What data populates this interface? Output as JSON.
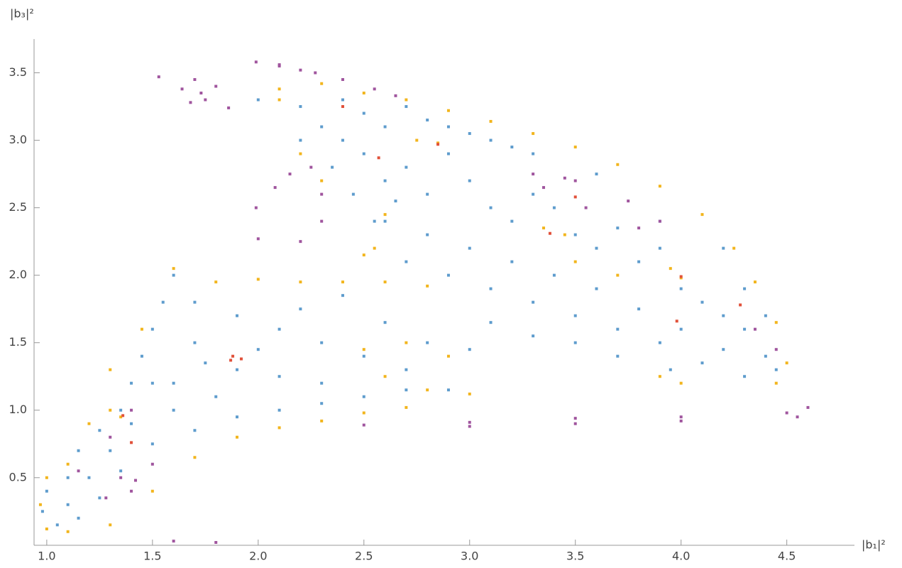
{
  "chart_data": {
    "type": "scatter",
    "x_label": "|b₁|²",
    "y_label": "|b₃|²",
    "xlim": [
      0.94,
      4.82
    ],
    "ylim": [
      0.02,
      3.75
    ],
    "xticks": [
      {
        "value": 1,
        "label": "1.0"
      },
      1.5,
      {
        "value": 2,
        "label": "2.0"
      },
      2.5,
      {
        "value": 3,
        "label": "3.0"
      },
      3.5,
      {
        "value": 4,
        "label": "4.0"
      },
      4.5
    ],
    "yticks": [
      0.5,
      {
        "value": 1,
        "label": "1.0"
      },
      1.5,
      {
        "value": 2,
        "label": "2.0"
      },
      2.5,
      {
        "value": 3,
        "label": "3.0"
      },
      3.5
    ],
    "series": [
      {
        "color": "#5e9ccd",
        "x": [
          2.0,
          2.2,
          2.3,
          2.4,
          2.5,
          2.6,
          2.7,
          2.8,
          2.9,
          3.0,
          3.1,
          3.2,
          2.5,
          2.6,
          2.7,
          2.8,
          2.9,
          3.0,
          3.1,
          3.2,
          3.3,
          3.4,
          3.5,
          3.6,
          3.7,
          3.8,
          3.9,
          4.0,
          4.1,
          4.2,
          4.3,
          4.4,
          4.45,
          4.2,
          4.0,
          3.8,
          3.6,
          3.4,
          3.2,
          3.0,
          2.8,
          2.6,
          2.7,
          2.9,
          3.1,
          3.3,
          3.5,
          3.7,
          3.9,
          4.1,
          4.3,
          3.95,
          3.7,
          3.5,
          3.3,
          3.1,
          4.2,
          4.3,
          4.4,
          3.9,
          3.6,
          3.3,
          2.35,
          2.45,
          2.55,
          2.65,
          2.4,
          2.2,
          1.6,
          1.55,
          1.5,
          1.45,
          1.4,
          1.35,
          1.25,
          1.15,
          1.1,
          1.0,
          0.98,
          1.05,
          1.15,
          1.25,
          1.35,
          1.5,
          1.7,
          1.9,
          2.1,
          2.3,
          2.5,
          2.7,
          2.9,
          1.7,
          1.9,
          2.1,
          2.3,
          2.5,
          2.7,
          1.7,
          1.9,
          2.1,
          2.3,
          1.6,
          1.8,
          1.6,
          1.5,
          1.75,
          2.0,
          2.2,
          2.4,
          2.6,
          2.8,
          3.0,
          1.4,
          1.3,
          1.2,
          1.1
        ],
        "values": [
          3.3,
          3.25,
          3.1,
          3.3,
          3.2,
          3.1,
          3.25,
          3.15,
          3.1,
          3.05,
          3.0,
          2.95,
          2.9,
          2.7,
          2.8,
          2.6,
          2.9,
          2.7,
          2.5,
          2.4,
          2.6,
          2.5,
          2.3,
          2.2,
          2.35,
          2.1,
          2.2,
          1.9,
          1.8,
          1.7,
          1.6,
          1.4,
          1.3,
          1.45,
          1.6,
          1.75,
          1.9,
          2.0,
          2.1,
          2.2,
          2.3,
          2.4,
          2.1,
          2.0,
          1.9,
          1.8,
          1.7,
          1.6,
          1.5,
          1.35,
          1.25,
          1.3,
          1.4,
          1.5,
          1.55,
          1.65,
          2.2,
          1.9,
          1.7,
          2.4,
          2.75,
          2.9,
          2.8,
          2.6,
          2.4,
          2.55,
          3.0,
          3.0,
          2.0,
          1.8,
          1.6,
          1.4,
          1.2,
          1.0,
          0.85,
          0.7,
          0.5,
          0.4,
          0.25,
          0.15,
          0.2,
          0.35,
          0.55,
          0.75,
          0.85,
          0.95,
          1.0,
          1.05,
          1.1,
          1.15,
          1.15,
          1.8,
          1.7,
          1.6,
          1.5,
          1.4,
          1.3,
          1.5,
          1.3,
          1.25,
          1.2,
          1.2,
          1.1,
          1.0,
          1.2,
          1.35,
          1.45,
          1.75,
          1.85,
          1.65,
          1.5,
          1.45,
          0.9,
          0.7,
          0.5,
          0.3
        ]
      },
      {
        "color": "#f2b51d",
        "x": [
          2.1,
          2.3,
          2.5,
          2.7,
          2.9,
          3.1,
          3.3,
          3.5,
          3.7,
          3.9,
          4.1,
          4.25,
          4.35,
          4.45,
          4.5,
          4.45,
          2.85,
          2.75,
          3.35,
          3.45,
          3.95,
          4.0,
          2.6,
          2.55,
          2.5,
          2.2,
          2.3,
          2.1,
          1.6,
          1.8,
          2.0,
          2.2,
          2.4,
          2.6,
          2.8,
          2.5,
          2.7,
          2.9,
          2.6,
          2.8,
          3.0,
          1.3,
          1.35,
          1.3,
          1.45,
          1.2,
          1.1,
          1.0,
          0.97,
          1.0,
          1.1,
          1.3,
          1.5,
          1.7,
          1.9,
          2.1,
          2.3,
          2.5,
          2.7,
          3.9,
          4.0,
          3.7,
          3.5
        ],
        "values": [
          3.38,
          3.42,
          3.35,
          3.3,
          3.22,
          3.14,
          3.05,
          2.95,
          2.82,
          2.66,
          2.45,
          2.2,
          1.95,
          1.65,
          1.35,
          1.2,
          2.98,
          3.0,
          2.35,
          2.3,
          2.05,
          1.98,
          2.45,
          2.2,
          2.15,
          2.9,
          2.7,
          3.3,
          2.05,
          1.95,
          1.97,
          1.95,
          1.95,
          1.95,
          1.92,
          1.45,
          1.5,
          1.4,
          1.25,
          1.15,
          1.12,
          1.0,
          0.95,
          1.3,
          1.6,
          0.9,
          0.6,
          0.5,
          0.3,
          0.12,
          0.1,
          0.15,
          0.4,
          0.65,
          0.8,
          0.87,
          0.92,
          0.98,
          1.02,
          1.25,
          1.2,
          2.0,
          2.1
        ]
      },
      {
        "color": "#a0559e",
        "x": [
          1.53,
          1.7,
          1.8,
          1.73,
          1.68,
          1.86,
          1.75,
          1.64,
          1.99,
          2.1,
          2.2,
          2.1,
          2.27,
          2.4,
          2.55,
          2.65,
          2.15,
          2.25,
          2.3,
          2.3,
          2.2,
          2.0,
          1.99,
          2.08,
          3.3,
          3.5,
          3.75,
          3.9,
          3.8,
          3.55,
          3.35,
          3.45,
          2.5,
          3.0,
          3.5,
          4.0,
          4.5,
          4.6,
          4.55,
          4.0,
          3.5,
          3.0,
          1.15,
          1.3,
          1.4,
          1.4,
          1.5,
          1.35,
          1.28,
          1.42,
          1.6,
          1.8,
          4.35,
          4.45
        ],
        "values": [
          3.47,
          3.45,
          3.4,
          3.35,
          3.28,
          3.24,
          3.3,
          3.38,
          3.58,
          3.56,
          3.52,
          3.55,
          3.5,
          3.45,
          3.38,
          3.33,
          2.75,
          2.8,
          2.6,
          2.4,
          2.25,
          2.27,
          2.5,
          2.65,
          2.75,
          2.7,
          2.55,
          2.4,
          2.35,
          2.5,
          2.65,
          2.72,
          0.89,
          0.91,
          0.94,
          0.95,
          0.98,
          1.02,
          0.95,
          0.92,
          0.9,
          0.88,
          0.55,
          0.8,
          1.0,
          0.4,
          0.6,
          0.5,
          0.35,
          0.48,
          0.03,
          0.02,
          1.6,
          1.45
        ]
      },
      {
        "color": "#e1513a",
        "x": [
          2.4,
          2.57,
          2.85,
          3.38,
          3.5,
          4.0,
          3.98,
          1.88,
          1.87,
          1.92,
          1.36,
          1.4,
          4.28
        ],
        "values": [
          3.25,
          2.87,
          2.97,
          2.31,
          2.58,
          1.99,
          1.66,
          1.4,
          1.37,
          1.38,
          0.96,
          0.76,
          1.78
        ]
      }
    ]
  }
}
